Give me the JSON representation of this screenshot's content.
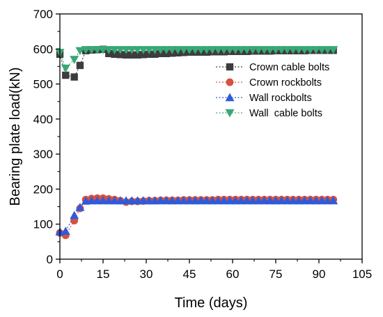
{
  "chart_data": {
    "type": "line",
    "xlabel": "Time (days)",
    "ylabel": "Bearing plate load(kN)",
    "xlim": [
      0,
      105
    ],
    "ylim": [
      0,
      700
    ],
    "xticks": [
      0,
      15,
      30,
      45,
      60,
      75,
      90,
      105
    ],
    "yticks": [
      0,
      100,
      200,
      300,
      400,
      500,
      600,
      700
    ],
    "grid": false,
    "legend_position": "upper-right",
    "series": [
      {
        "name": "Crown cable bolts",
        "color": "#3d3d3d",
        "marker": "square",
        "x": [
          0,
          2,
          5,
          7,
          9,
          11,
          13,
          15,
          17,
          19,
          21,
          23,
          25,
          27,
          29,
          31,
          33,
          35,
          37,
          39,
          41,
          43,
          45,
          47,
          49,
          51,
          53,
          55,
          57,
          59,
          61,
          63,
          65,
          67,
          69,
          71,
          73,
          75,
          77,
          79,
          81,
          83,
          85,
          87,
          89,
          91,
          93,
          95
        ],
        "y": [
          585,
          525,
          520,
          553,
          595,
          597,
          598,
          599,
          587,
          585,
          584,
          583,
          583,
          583,
          584,
          585,
          585,
          587,
          587,
          588,
          589,
          590,
          591,
          591,
          591,
          591,
          592,
          592,
          592,
          593,
          593,
          593,
          593,
          594,
          594,
          594,
          594,
          595,
          595,
          595,
          595,
          595,
          595,
          596,
          596,
          596,
          596,
          596
        ]
      },
      {
        "name": "Crown rockbolts",
        "color": "#d9503f",
        "marker": "circle",
        "x": [
          0,
          2,
          5,
          7,
          9,
          11,
          13,
          15,
          17,
          19,
          21,
          23,
          25,
          27,
          29,
          31,
          33,
          35,
          37,
          39,
          41,
          43,
          45,
          47,
          49,
          51,
          53,
          55,
          57,
          59,
          61,
          63,
          65,
          67,
          69,
          71,
          73,
          75,
          77,
          79,
          81,
          83,
          85,
          87,
          89,
          91,
          93,
          95
        ],
        "y": [
          75,
          68,
          110,
          145,
          170,
          173,
          174,
          174,
          172,
          170,
          167,
          163,
          165,
          165,
          166,
          167,
          167,
          168,
          168,
          168,
          168,
          169,
          169,
          169,
          169,
          169,
          169,
          170,
          170,
          170,
          170,
          170,
          170,
          170,
          170,
          170,
          170,
          170,
          170,
          170,
          170,
          170,
          170,
          170,
          170,
          170,
          170,
          170
        ]
      },
      {
        "name": "Wall rockbolts",
        "color": "#2f5bd8",
        "marker": "triangle-up",
        "x": [
          0,
          2,
          5,
          7,
          9,
          11,
          13,
          15,
          17,
          19,
          21,
          23,
          25,
          27,
          29,
          31,
          33,
          35,
          37,
          39,
          41,
          43,
          45,
          47,
          49,
          51,
          53,
          55,
          57,
          59,
          61,
          63,
          65,
          67,
          69,
          71,
          73,
          75,
          77,
          79,
          81,
          83,
          85,
          87,
          89,
          91,
          93,
          95
        ],
        "y": [
          78,
          80,
          125,
          148,
          166,
          167,
          167,
          167,
          167,
          167,
          167,
          167,
          167,
          167,
          167,
          167,
          167,
          167,
          167,
          167,
          167,
          167,
          167,
          167,
          167,
          167,
          167,
          167,
          167,
          167,
          167,
          167,
          167,
          167,
          167,
          167,
          167,
          167,
          167,
          167,
          167,
          167,
          167,
          167,
          167,
          167,
          167,
          167
        ]
      },
      {
        "name": "Wall  cable bolts",
        "color": "#3aa876",
        "marker": "triangle-down",
        "x": [
          0,
          2,
          5,
          7,
          9,
          11,
          13,
          15,
          17,
          19,
          21,
          23,
          25,
          27,
          29,
          31,
          33,
          35,
          37,
          39,
          41,
          43,
          45,
          47,
          49,
          51,
          53,
          55,
          57,
          59,
          61,
          63,
          65,
          67,
          69,
          71,
          73,
          75,
          77,
          79,
          81,
          83,
          85,
          87,
          89,
          91,
          93,
          95
        ],
        "y": [
          590,
          545,
          570,
          595,
          598,
          598,
          598,
          598,
          598,
          598,
          598,
          598,
          598,
          598,
          598,
          598,
          598,
          598,
          598,
          598,
          598,
          598,
          598,
          598,
          598,
          598,
          598,
          598,
          598,
          598,
          598,
          598,
          598,
          598,
          598,
          598,
          598,
          598,
          598,
          598,
          598,
          598,
          598,
          598,
          598,
          598,
          598,
          598
        ]
      }
    ]
  }
}
